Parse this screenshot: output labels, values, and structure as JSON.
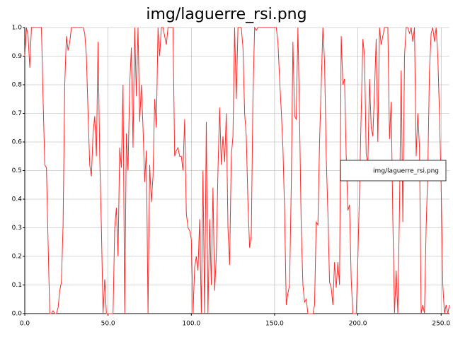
{
  "chart_data": {
    "type": "line",
    "title": "img/laguerre_rsi.png",
    "series": [
      {
        "name": "img/laguerre_rsi.png",
        "color": "#ff2a2a",
        "values": [
          0.9,
          1.0,
          0.97,
          0.86,
          1.0,
          1.0,
          1.0,
          1.0,
          1.0,
          1.0,
          1.0,
          0.75,
          0.52,
          0.51,
          0.25,
          0.0,
          0.0,
          0.01,
          0.0,
          0.0,
          0.02,
          0.08,
          0.11,
          0.31,
          0.8,
          0.97,
          0.92,
          0.95,
          1.0,
          1.0,
          1.0,
          1.0,
          1.0,
          1.0,
          1.0,
          1.0,
          0.98,
          0.9,
          0.7,
          0.52,
          0.48,
          0.63,
          0.69,
          0.55,
          0.95,
          0.55,
          0.3,
          0.0,
          0.12,
          0.0,
          0.0,
          0.0,
          0.0,
          0.0,
          0.3,
          0.37,
          0.2,
          0.58,
          0.51,
          0.8,
          0.0,
          0.63,
          0.5,
          0.8,
          0.93,
          0.58,
          1.0,
          0.76,
          1.0,
          0.67,
          0.8,
          0.65,
          0.46,
          0.57,
          0.0,
          0.52,
          0.39,
          0.48,
          0.75,
          0.65,
          1.0,
          0.9,
          1.0,
          1.0,
          0.97,
          0.94,
          1.0,
          1.0,
          1.0,
          1.0,
          0.55,
          0.57,
          0.58,
          0.55,
          0.55,
          0.5,
          0.68,
          0.35,
          0.3,
          0.29,
          0.26,
          0.0,
          0.16,
          0.2,
          0.15,
          0.33,
          0.0,
          0.5,
          0.0,
          0.67,
          0.0,
          0.33,
          0.1,
          0.44,
          0.08,
          0.2,
          0.5,
          0.72,
          0.52,
          0.62,
          0.53,
          0.7,
          0.3,
          0.17,
          0.55,
          0.62,
          1.0,
          0.75,
          1.0,
          1.0,
          1.0,
          0.93,
          0.7,
          0.62,
          0.39,
          0.23,
          0.27,
          0.75,
          1.0,
          0.99,
          1.0,
          1.0,
          1.0,
          1.0,
          1.0,
          1.0,
          1.0,
          1.0,
          1.0,
          1.0,
          1.0,
          1.0,
          0.95,
          0.82,
          0.71,
          0.58,
          0.36,
          0.03,
          0.07,
          0.1,
          0.44,
          0.95,
          0.69,
          0.68,
          1.0,
          0.68,
          0.3,
          0.1,
          0.04,
          0.05,
          0.0,
          0.0,
          0.0,
          0.0,
          0.03,
          0.32,
          0.31,
          0.6,
          0.8,
          1.0,
          0.88,
          0.55,
          0.35,
          0.11,
          0.09,
          0.03,
          0.18,
          0.09,
          0.18,
          0.1,
          0.97,
          0.8,
          0.82,
          0.55,
          0.36,
          0.38,
          0.12,
          0.0,
          0.0,
          0.0,
          0.19,
          0.43,
          0.7,
          0.96,
          0.9,
          0.56,
          0.52,
          0.82,
          0.65,
          0.62,
          0.78,
          0.96,
          0.6,
          1.0,
          0.94,
          0.97,
          1.0,
          1.0,
          1.0,
          0.61,
          0.74,
          0.33,
          0.0,
          0.15,
          0.0,
          0.37,
          0.85,
          0.32,
          0.9,
          1.0,
          1.0,
          0.98,
          1.0,
          0.95,
          1.0,
          0.55,
          0.7,
          0.58,
          0.0,
          0.03,
          0.0,
          0.3,
          0.5,
          0.85,
          0.98,
          1.0,
          0.95,
          1.0,
          0.9,
          0.7,
          0.45,
          0.1,
          0.0,
          0.03,
          0.0,
          0.03
        ]
      }
    ],
    "xlim": [
      0,
      255
    ],
    "ylim": [
      0,
      1
    ],
    "xticks": [
      {
        "value": 0,
        "label": "0.0"
      },
      {
        "value": 50,
        "label": "50.0"
      },
      {
        "value": 100,
        "label": "100.0"
      },
      {
        "value": 150,
        "label": "150.0"
      },
      {
        "value": 200,
        "label": "200.0"
      },
      {
        "value": 250,
        "label": "250.0"
      }
    ],
    "yticks": [
      {
        "value": 0,
        "label": "0.0"
      },
      {
        "value": 0.1,
        "label": "0.1"
      },
      {
        "value": 0.2,
        "label": "0.2"
      },
      {
        "value": 0.3,
        "label": "0.3"
      },
      {
        "value": 0.4,
        "label": "0.4"
      },
      {
        "value": 0.5,
        "label": "0.5"
      },
      {
        "value": 0.6,
        "label": "0.6"
      },
      {
        "value": 0.7,
        "label": "0.7"
      },
      {
        "value": 0.8,
        "label": "0.8"
      },
      {
        "value": 0.9,
        "label": "0.9"
      },
      {
        "value": 1,
        "label": "1.0"
      }
    ],
    "grid": true,
    "legend": "right"
  }
}
